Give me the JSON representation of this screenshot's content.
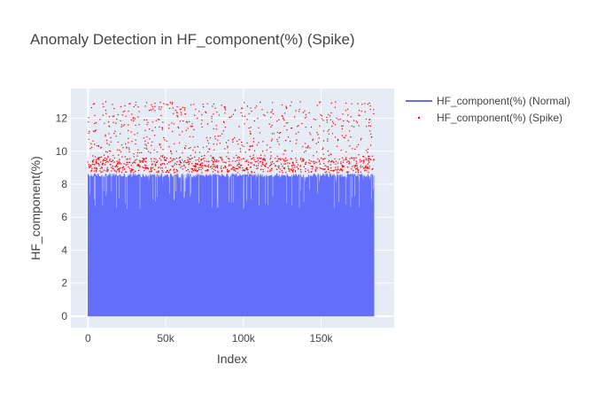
{
  "chart_data": {
    "type": "scatter",
    "title": "Anomaly Detection in HF_component(%) (Spike)",
    "xlabel": "Index",
    "ylabel": "HF_component(%)",
    "xlim": [
      -11000,
      197000
    ],
    "ylim": [
      -0.7,
      13.8
    ],
    "x_ticks": [
      0,
      50000,
      100000,
      150000
    ],
    "x_tick_labels": [
      "0",
      "50k",
      "100k",
      "150k"
    ],
    "y_ticks": [
      0,
      2,
      4,
      6,
      8,
      10,
      12
    ],
    "y_tick_labels": [
      "0",
      "2",
      "4",
      "6",
      "8",
      "10",
      "12"
    ],
    "grid": true,
    "legend_position": "top-right",
    "x_range_observed": [
      0,
      184000
    ],
    "series": [
      {
        "name": "HF_component(%) (Normal)",
        "mode": "line",
        "color": "#636efa",
        "range_x": [
          0,
          184000
        ],
        "baseline": 0,
        "typical_upper": 8.5,
        "max": 8.7
      },
      {
        "name": "HF_component(%) (Spike)",
        "mode": "markers",
        "color": "#ff0000",
        "range_x": [
          0,
          184000
        ],
        "y_min": 8.7,
        "y_max": 13.0,
        "dense_band": [
          8.7,
          9.6
        ]
      }
    ]
  }
}
